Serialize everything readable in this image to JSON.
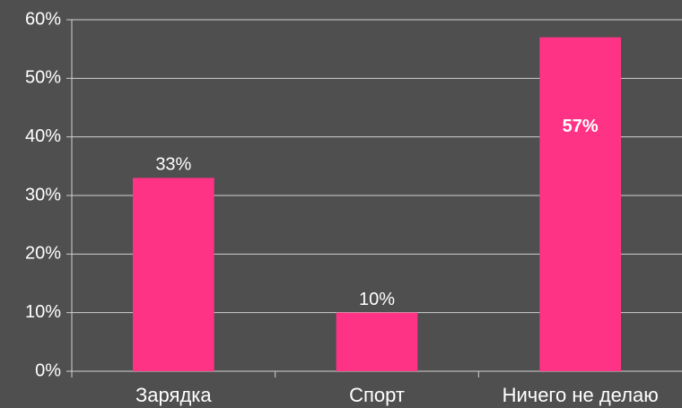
{
  "chart_data": {
    "type": "bar",
    "categories": [
      "Зарядка",
      "Спорт",
      "Ничего не делаю"
    ],
    "values": [
      33,
      10,
      57
    ],
    "value_labels": [
      "33%",
      "10%",
      "57%"
    ],
    "color": "#ff3385",
    "ylim": [
      0,
      60
    ],
    "yticks": [
      {
        "value": 0,
        "label": "0%"
      },
      {
        "value": 10,
        "label": "10%"
      },
      {
        "value": 20,
        "label": "20%"
      },
      {
        "value": 30,
        "label": "30%"
      },
      {
        "value": 40,
        "label": "40%"
      },
      {
        "value": 50,
        "label": "50%"
      },
      {
        "value": 60,
        "label": "60%"
      }
    ],
    "grid": true
  }
}
